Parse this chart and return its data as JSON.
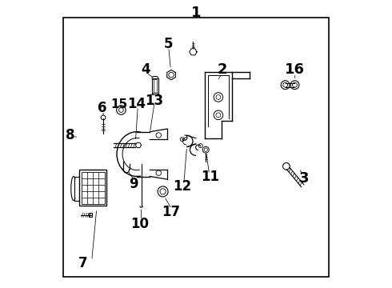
{
  "bg": "#ffffff",
  "lc": "#000000",
  "border": [
    0.04,
    0.04,
    0.92,
    0.9
  ],
  "label_1": [
    0.5,
    0.955,
    13
  ],
  "label_2": [
    0.595,
    0.755,
    13
  ],
  "label_3": [
    0.875,
    0.38,
    13
  ],
  "label_4": [
    0.325,
    0.755,
    12
  ],
  "label_5": [
    0.405,
    0.845,
    12
  ],
  "label_6": [
    0.175,
    0.625,
    12
  ],
  "label_7": [
    0.105,
    0.085,
    12
  ],
  "label_8": [
    0.068,
    0.535,
    12
  ],
  "label_9": [
    0.285,
    0.365,
    12
  ],
  "label_10": [
    0.305,
    0.225,
    12
  ],
  "label_11": [
    0.545,
    0.385,
    12
  ],
  "label_12": [
    0.455,
    0.355,
    12
  ],
  "label_13": [
    0.355,
    0.655,
    12
  ],
  "label_14": [
    0.295,
    0.64,
    12
  ],
  "label_15": [
    0.235,
    0.64,
    11
  ],
  "label_16": [
    0.845,
    0.755,
    13
  ],
  "label_17": [
    0.415,
    0.265,
    12
  ]
}
